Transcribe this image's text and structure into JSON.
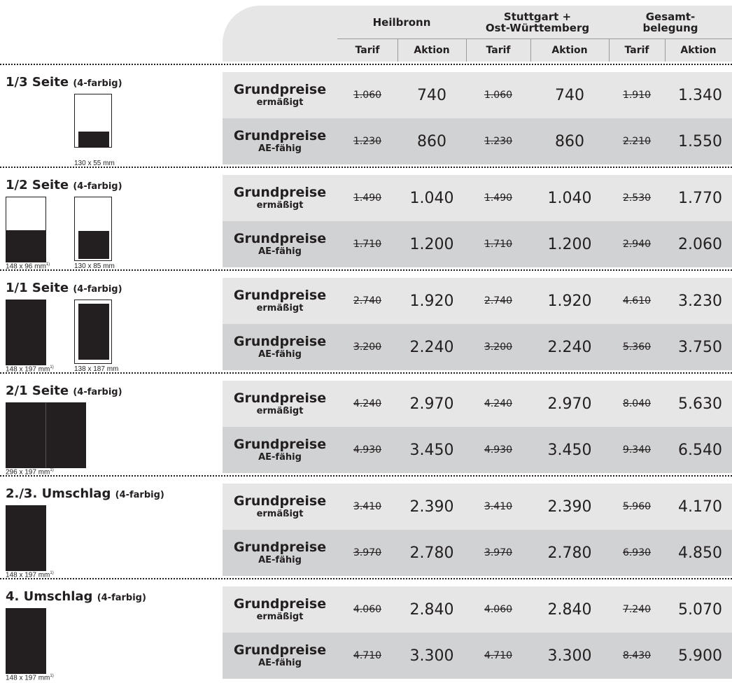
{
  "header": {
    "groups": [
      "Heilbronn",
      "Stuttgart +\nOst-Württemberg",
      "Gesamt-\nbelegung"
    ],
    "tarif_label": "Tarif",
    "aktion_label": "Aktion"
  },
  "price_row_labels": {
    "ermaessigt": {
      "line1": "Grundpreise",
      "line2": "ermäßigt"
    },
    "ae_faehig": {
      "line1": "Grundpreise",
      "line2": "AE-fähig"
    }
  },
  "sections": [
    {
      "title": "1/3 Seite",
      "color_note": "(4-farbig)",
      "formats": [
        {
          "label": "130 x 55 mm",
          "footnote": ""
        }
      ],
      "rows": [
        [
          "1.060",
          "740",
          "1.060",
          "740",
          "1.910",
          "1.340"
        ],
        [
          "1.230",
          "860",
          "1.230",
          "860",
          "2.210",
          "1.550"
        ]
      ]
    },
    {
      "title": "1/2 Seite",
      "color_note": "(4-farbig)",
      "formats": [
        {
          "label": "148 x 96 mm",
          "footnote": "1)"
        },
        {
          "label": "130 x 85 mm",
          "footnote": ""
        }
      ],
      "rows": [
        [
          "1.490",
          "1.040",
          "1.490",
          "1.040",
          "2.530",
          "1.770"
        ],
        [
          "1.710",
          "1.200",
          "1.710",
          "1.200",
          "2.940",
          "2.060"
        ]
      ]
    },
    {
      "title": "1/1 Seite",
      "color_note": "(4-farbig)",
      "formats": [
        {
          "label": "148 x 197 mm",
          "footnote": "1)"
        },
        {
          "label": "138 x 187 mm",
          "footnote": ""
        }
      ],
      "rows": [
        [
          "2.740",
          "1.920",
          "2.740",
          "1.920",
          "4.610",
          "3.230"
        ],
        [
          "3.200",
          "2.240",
          "3.200",
          "2.240",
          "5.360",
          "3.750"
        ]
      ]
    },
    {
      "title": "2/1 Seite",
      "color_note": "(4-farbig)",
      "formats": [
        {
          "label": "296 x 197 mm",
          "footnote": "1)"
        }
      ],
      "rows": [
        [
          "4.240",
          "2.970",
          "4.240",
          "2.970",
          "8.040",
          "5.630"
        ],
        [
          "4.930",
          "3.450",
          "4.930",
          "3.450",
          "9.340",
          "6.540"
        ]
      ]
    },
    {
      "title": "2./3. Umschlag",
      "color_note": "(4-farbig)",
      "formats": [
        {
          "label": "148 x 197 mm",
          "footnote": "1)"
        }
      ],
      "rows": [
        [
          "3.410",
          "2.390",
          "3.410",
          "2.390",
          "5.960",
          "4.170"
        ],
        [
          "3.970",
          "2.780",
          "3.970",
          "2.780",
          "6.930",
          "4.850"
        ]
      ]
    },
    {
      "title": "4. Umschlag",
      "color_note": "(4-farbig)",
      "formats": [
        {
          "label": "148 x 197 mm",
          "footnote": "1)"
        }
      ],
      "rows": [
        [
          "4.060",
          "2.840",
          "4.060",
          "2.840",
          "7.240",
          "5.070"
        ],
        [
          "4.710",
          "3.300",
          "4.710",
          "3.300",
          "8.430",
          "5.900"
        ]
      ]
    }
  ]
}
